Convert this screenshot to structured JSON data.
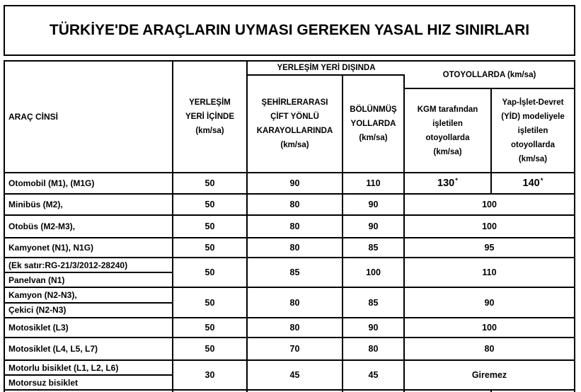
{
  "title": "TÜRKİYE'DE ARAÇLARIN UYMASI GEREKEN YASAL HIZ SINIRLARI",
  "header": {
    "col_vehicle": "ARAÇ CİNSİ",
    "col_urban": "YERLEŞİM\nYERİ İÇİNDE\n(km/sa)",
    "group_outside_urban": "YERLEŞİM YERİ DIŞINDA",
    "col_intercity": "ŞEHİRLERARASI\nÇİFT YÖNLÜ\nKARAYOLLARINDA\n(km/sa)",
    "col_divided": "BÖLÜNMÜŞ\nYOLLARDA\n(km/sa)",
    "group_motorway": "OTOYOLLARDA (km/sa)",
    "col_kgm": "KGM tarafından\nişletilen\notoyollarda\n(km/sa)",
    "col_yid": "Yap-İşlet-Devret\n(YİD) modeliyele\nişletilen\notoyollarda\n(km/sa)"
  },
  "rows": {
    "otomobil": {
      "label": "Otomobil (M1), (M1G)",
      "urban": "50",
      "intercity": "90",
      "divided": "110",
      "kgm": "130",
      "kgm_note": "*",
      "yid": "140",
      "yid_note": "*"
    },
    "minibus": {
      "label": "Minibüs (M2),",
      "urban": "50",
      "intercity": "80",
      "divided": "90",
      "motorway": "100"
    },
    "otobus": {
      "label": "Otobüs (M2-M3),",
      "urban": "50",
      "intercity": "80",
      "divided": "90",
      "motorway": "100"
    },
    "kamyonet": {
      "label": "Kamyonet (N1), N1G)",
      "urban": "50",
      "intercity": "80",
      "divided": "85",
      "motorway": "95"
    },
    "panelvan": {
      "label1": "(Ek satır:RG-21/3/2012-28240)",
      "label2": "Panelvan (N1)",
      "urban": "50",
      "intercity": "85",
      "divided": "100",
      "motorway": "110"
    },
    "kamyon": {
      "label1": "Kamyon (N2-N3),",
      "label2": "Çekici (N2-N3)",
      "urban": "50",
      "intercity": "80",
      "divided": "85",
      "motorway": "90"
    },
    "motosiklet_l3": {
      "label": "Motosiklet (L3)",
      "urban": "50",
      "intercity": "80",
      "divided": "90",
      "motorway": "100"
    },
    "motosiklet_l4": {
      "label": "Motosiklet (L4, L5, L7)",
      "urban": "50",
      "intercity": "70",
      "divided": "80",
      "motorway": "80"
    },
    "bisiklet": {
      "label1": "Motorlu bisiklet (L1, L2, L6)",
      "label2": "Motorsuz bisiklet",
      "urban": "30",
      "intercity": "45",
      "divided": "45",
      "motorway": "Giremez"
    }
  }
}
